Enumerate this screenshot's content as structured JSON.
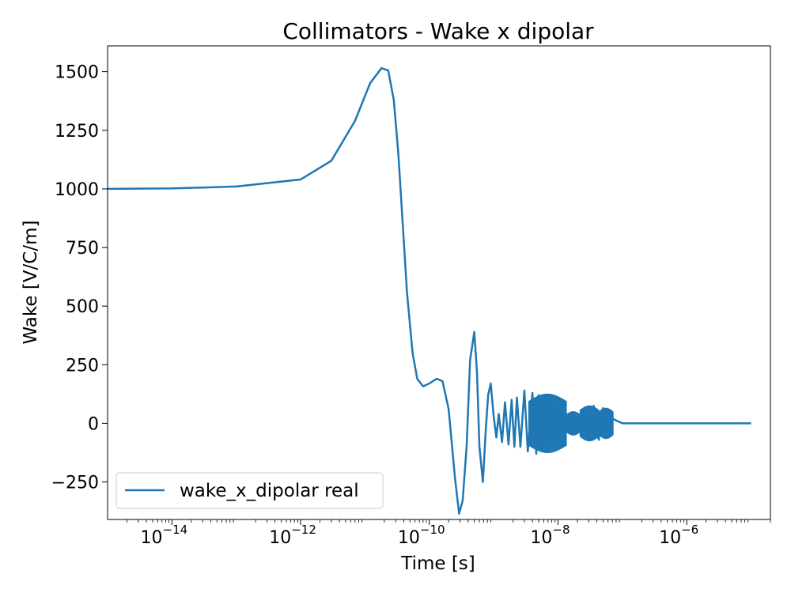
{
  "chart_data": {
    "type": "line",
    "title": "Collimators - Wake x dipolar",
    "xlabel": "Time [s]",
    "ylabel": "Wake [V/C/m]",
    "xscale": "log",
    "xlim": [
      1e-15,
      2e-05
    ],
    "ylim": [
      -410,
      1610
    ],
    "grid": false,
    "legend_position": "lower-left",
    "line_color": "#1f77b4",
    "x_ticks": [
      {
        "base": "10",
        "exp": "−14",
        "value": 1e-14
      },
      {
        "base": "10",
        "exp": "−12",
        "value": 1e-12
      },
      {
        "base": "10",
        "exp": "−10",
        "value": 1e-10
      },
      {
        "base": "10",
        "exp": "−8",
        "value": 1e-08
      },
      {
        "base": "10",
        "exp": "−6",
        "value": 1e-06
      }
    ],
    "y_ticks": [
      {
        "label": "1500",
        "value": 1500
      },
      {
        "label": "1250",
        "value": 1250
      },
      {
        "label": "1000",
        "value": 1000
      },
      {
        "label": "750",
        "value": 750
      },
      {
        "label": "500",
        "value": 500
      },
      {
        "label": "250",
        "value": 250
      },
      {
        "label": "0",
        "value": 0
      },
      {
        "label": "−250",
        "value": -250
      }
    ],
    "series": [
      {
        "name": "wake_x_dipolar real",
        "color": "#1f77b4",
        "x": [
          1e-15,
          1e-14,
          1e-13,
          1e-12,
          3e-12,
          7e-12,
          1.2e-11,
          1.8e-11,
          2.3e-11,
          2.8e-11,
          3.3e-11,
          3.8e-11,
          4.5e-11,
          5.5e-11,
          6.5e-11,
          8e-11,
          1e-10,
          1.3e-10,
          1.6e-10,
          2e-10,
          2.5e-10,
          2.9e-10,
          3.3e-10,
          3.8e-10,
          4.3e-10,
          5e-10,
          5.5e-10,
          6e-10,
          6.8e-10,
          7.5e-10,
          8.2e-10,
          9e-10,
          1e-09,
          1.1e-09,
          1.2e-09,
          1.35e-09,
          1.5e-09,
          1.7e-09,
          1.9e-09,
          2.1e-09,
          2.3e-09,
          2.6e-09,
          3e-09,
          3.4e-09,
          4e-09,
          4.6e-09,
          5e-09,
          6e-09,
          7e-09,
          8e-09,
          1e-08,
          1.3e-08,
          1.6e-08,
          2e-08,
          2.5e-08,
          3e-08,
          3.6e-08,
          4.3e-08,
          5e-08,
          6e-08,
          7e-08,
          1e-07,
          1e-06,
          1e-05
        ],
        "y": [
          1000,
          1002,
          1010,
          1040,
          1120,
          1290,
          1450,
          1515,
          1505,
          1380,
          1150,
          880,
          560,
          300,
          190,
          158,
          170,
          190,
          180,
          60,
          -230,
          -385,
          -330,
          -100,
          270,
          390,
          220,
          -100,
          -250,
          -40,
          120,
          170,
          30,
          -60,
          40,
          -80,
          90,
          -90,
          100,
          -100,
          110,
          -100,
          140,
          -120,
          130,
          -130,
          120,
          -90,
          100,
          -80,
          55,
          -45,
          40,
          -30,
          60,
          -60,
          75,
          -70,
          65,
          -55,
          20,
          0,
          0,
          0
        ]
      }
    ],
    "hf_bands": [
      {
        "x_start": 3.5e-09,
        "x_end": 1.35e-08,
        "amplitude": 125
      },
      {
        "x_start": 1.35e-08,
        "x_end": 2.2e-08,
        "amplitude": 50
      },
      {
        "x_start": 2.2e-08,
        "x_end": 4.3e-08,
        "amplitude": 75
      },
      {
        "x_start": 4.3e-08,
        "x_end": 7.2e-08,
        "amplitude": 65
      }
    ]
  }
}
